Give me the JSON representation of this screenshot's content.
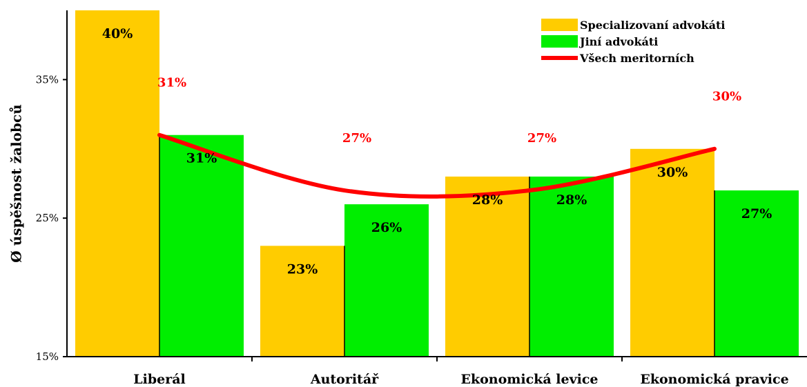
{
  "chart_data": {
    "type": "bar",
    "ylabel": "Ø úspěšnost žalobců",
    "xlabel": "",
    "ylim": [
      15,
      40
    ],
    "y_ticks": [
      15,
      25,
      35
    ],
    "y_tick_labels": [
      "15%",
      "25%",
      "35%"
    ],
    "categories": [
      "Liberál",
      "Autoritář",
      "Ekonomická levice",
      "Ekonomická pravice"
    ],
    "series": [
      {
        "name": "Specializovaní advokáti",
        "type": "bar",
        "color": "#FFCC00",
        "values": [
          40,
          23,
          28,
          30
        ],
        "labels": [
          "40%",
          "23%",
          "28%",
          "30%"
        ]
      },
      {
        "name": "Jiní advokáti",
        "type": "bar",
        "color": "#00EE00",
        "values": [
          31,
          26,
          28,
          27
        ],
        "labels": [
          "31%",
          "26%",
          "28%",
          "27%"
        ]
      },
      {
        "name": "Všech meritorních",
        "type": "line",
        "color": "#FF0000",
        "values": [
          31,
          27,
          27,
          30
        ],
        "labels": [
          "31%",
          "27%",
          "27%",
          "30%"
        ]
      }
    ],
    "legend_position": "top-right",
    "grid": false
  }
}
